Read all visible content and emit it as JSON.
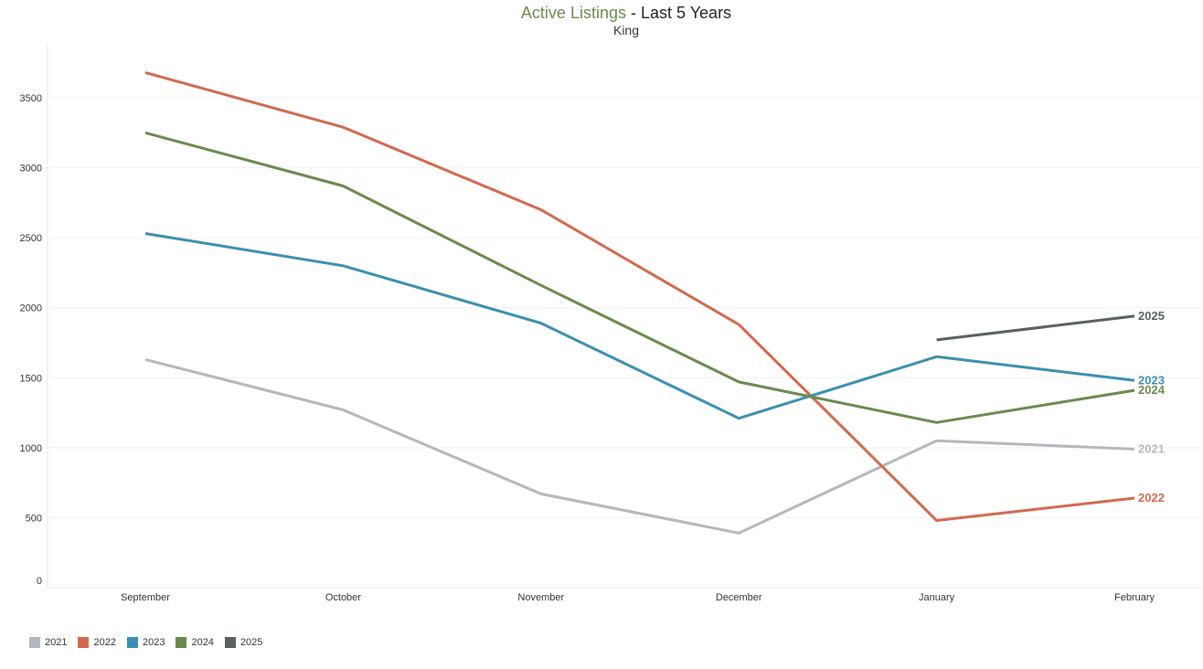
{
  "title": {
    "main": "Active Listings",
    "suffix": " - Last 5 Years",
    "subtitle": "King"
  },
  "chart_data": {
    "type": "line",
    "title": "Active Listings - Last 5 Years",
    "subtitle": "King",
    "categories": [
      "September",
      "October",
      "November",
      "December",
      "January",
      "February"
    ],
    "ylim": [
      0,
      3850
    ],
    "yticks": [
      0,
      500,
      1000,
      1500,
      2000,
      2500,
      3000,
      3500
    ],
    "grid": true,
    "legend_position": "bottom-left",
    "series": [
      {
        "name": "2021",
        "color": "#b4b8bc",
        "values": [
          1630,
          1270,
          670,
          390,
          1050,
          990
        ]
      },
      {
        "name": "2022",
        "color": "#d2694f",
        "values": [
          3680,
          3290,
          2700,
          1880,
          480,
          640
        ]
      },
      {
        "name": "2023",
        "color": "#3b8fb0",
        "values": [
          2530,
          2300,
          1890,
          1210,
          1650,
          1480
        ]
      },
      {
        "name": "2024",
        "color": "#6a8a4d",
        "values": [
          3250,
          2870,
          2160,
          1470,
          1180,
          1410
        ]
      },
      {
        "name": "2025",
        "color": "#5a5f5f",
        "values": [
          null,
          null,
          null,
          null,
          1770,
          1940
        ]
      }
    ]
  }
}
